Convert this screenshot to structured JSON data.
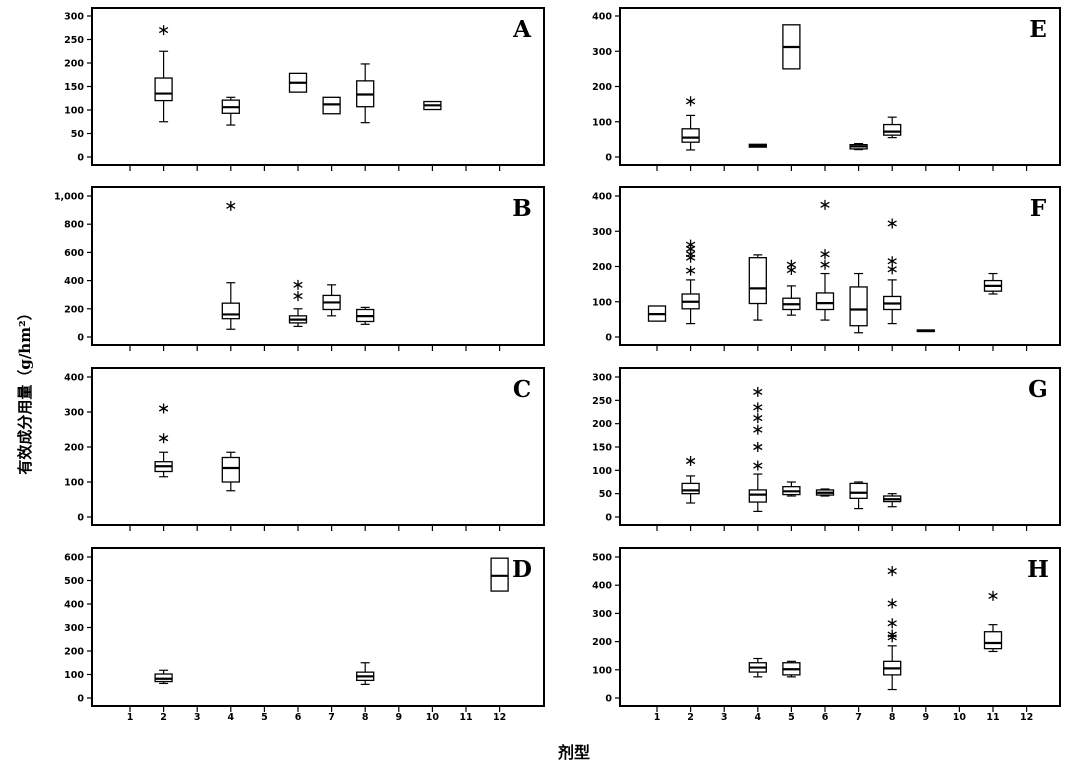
{
  "figure": {
    "ylabel": "有效成分用量（g/hm²）",
    "xlabel": "剂型",
    "x_categories": [
      "1",
      "2",
      "3",
      "4",
      "5",
      "6",
      "7",
      "8",
      "9",
      "10",
      "11",
      "12"
    ]
  },
  "chart_data": [
    {
      "type": "box",
      "panel": "A",
      "ylim": [
        0,
        300
      ],
      "yticks": [
        "0",
        "50",
        "100",
        "150",
        "200",
        "250",
        "300"
      ],
      "boxes": [
        {
          "x": 2,
          "whisker_low": 75,
          "q1": 120,
          "median": 135,
          "q3": 168,
          "whisker_high": 225,
          "outliers": [
            270
          ]
        },
        {
          "x": 4,
          "whisker_low": 68,
          "q1": 93,
          "median": 106,
          "q3": 121,
          "whisker_high": 127,
          "outliers": []
        },
        {
          "x": 6,
          "whisker_low": 138,
          "q1": 138,
          "median": 158,
          "q3": 178,
          "whisker_high": 178,
          "outliers": []
        },
        {
          "x": 7,
          "whisker_low": 92,
          "q1": 92,
          "median": 112,
          "q3": 127,
          "whisker_high": 127,
          "outliers": []
        },
        {
          "x": 8,
          "whisker_low": 73,
          "q1": 107,
          "median": 133,
          "q3": 162,
          "whisker_high": 198,
          "outliers": []
        },
        {
          "x": 10,
          "whisker_low": 101,
          "q1": 101,
          "median": 110,
          "q3": 118,
          "whisker_high": 118,
          "outliers": []
        }
      ]
    },
    {
      "type": "box",
      "panel": "E",
      "ylim": [
        0,
        400
      ],
      "yticks": [
        "0",
        "100",
        "200",
        "300",
        "400"
      ],
      "boxes": [
        {
          "x": 2,
          "whisker_low": 20,
          "q1": 42,
          "median": 55,
          "q3": 80,
          "whisker_high": 118,
          "outliers": [
            158
          ]
        },
        {
          "x": 4,
          "whisker_low": 28,
          "q1": 28,
          "median": 32,
          "q3": 36,
          "whisker_high": 36,
          "outliers": []
        },
        {
          "x": 5,
          "whisker_low": 250,
          "q1": 250,
          "median": 312,
          "q3": 375,
          "whisker_high": 375,
          "outliers": []
        },
        {
          "x": 7,
          "whisker_low": 21,
          "q1": 23,
          "median": 30,
          "q3": 35,
          "whisker_high": 38,
          "outliers": []
        },
        {
          "x": 8,
          "whisker_low": 55,
          "q1": 62,
          "median": 72,
          "q3": 92,
          "whisker_high": 113,
          "outliers": []
        }
      ]
    },
    {
      "type": "box",
      "panel": "B",
      "ylim": [
        0,
        1000
      ],
      "yticks": [
        "0",
        "200",
        "400",
        "600",
        "800",
        "1,000"
      ],
      "boxes": [
        {
          "x": 4,
          "whisker_low": 55,
          "q1": 130,
          "median": 160,
          "q3": 240,
          "whisker_high": 385,
          "outliers": [
            930
          ]
        },
        {
          "x": 6,
          "whisker_low": 75,
          "q1": 100,
          "median": 123,
          "q3": 150,
          "whisker_high": 200,
          "outliers": [
            290,
            370
          ]
        },
        {
          "x": 7,
          "whisker_low": 150,
          "q1": 195,
          "median": 245,
          "q3": 295,
          "whisker_high": 370,
          "outliers": []
        },
        {
          "x": 8,
          "whisker_low": 90,
          "q1": 110,
          "median": 148,
          "q3": 195,
          "whisker_high": 210,
          "outliers": []
        }
      ]
    },
    {
      "type": "box",
      "panel": "F",
      "ylim": [
        0,
        400
      ],
      "yticks": [
        "0",
        "100",
        "200",
        "300",
        "400"
      ],
      "boxes": [
        {
          "x": 1,
          "whisker_low": 45,
          "q1": 45,
          "median": 65,
          "q3": 88,
          "whisker_high": 88,
          "outliers": []
        },
        {
          "x": 2,
          "whisker_low": 38,
          "q1": 80,
          "median": 100,
          "q3": 122,
          "whisker_high": 162,
          "outliers": [
            188,
            225,
            235,
            250,
            262
          ]
        },
        {
          "x": 4,
          "whisker_low": 48,
          "q1": 95,
          "median": 138,
          "q3": 225,
          "whisker_high": 233,
          "outliers": []
        },
        {
          "x": 5,
          "whisker_low": 62,
          "q1": 78,
          "median": 93,
          "q3": 110,
          "whisker_high": 145,
          "outliers": [
            190,
            205
          ]
        },
        {
          "x": 6,
          "whisker_low": 48,
          "q1": 78,
          "median": 96,
          "q3": 125,
          "whisker_high": 180,
          "outliers": [
            205,
            235,
            375
          ]
        },
        {
          "x": 7,
          "whisker_low": 12,
          "q1": 32,
          "median": 78,
          "q3": 142,
          "whisker_high": 180,
          "outliers": []
        },
        {
          "x": 8,
          "whisker_low": 38,
          "q1": 78,
          "median": 95,
          "q3": 115,
          "whisker_high": 162,
          "outliers": [
            192,
            215,
            322
          ]
        },
        {
          "x": 9,
          "whisker_low": 17,
          "q1": 17,
          "median": 17,
          "q3": 20,
          "whisker_high": 20,
          "outliers": []
        },
        {
          "x": 11,
          "whisker_low": 122,
          "q1": 130,
          "median": 145,
          "q3": 160,
          "whisker_high": 180,
          "outliers": []
        }
      ]
    },
    {
      "type": "box",
      "panel": "C",
      "ylim": [
        0,
        400
      ],
      "yticks": [
        "0",
        "100",
        "200",
        "300",
        "400"
      ],
      "boxes": [
        {
          "x": 2,
          "whisker_low": 115,
          "q1": 130,
          "median": 145,
          "q3": 158,
          "whisker_high": 185,
          "outliers": [
            225,
            310
          ]
        },
        {
          "x": 4,
          "whisker_low": 75,
          "q1": 100,
          "median": 140,
          "q3": 170,
          "whisker_high": 185,
          "outliers": []
        }
      ]
    },
    {
      "type": "box",
      "panel": "G",
      "ylim": [
        0,
        300
      ],
      "yticks": [
        "0",
        "50",
        "100",
        "150",
        "200",
        "250",
        "300"
      ],
      "boxes": [
        {
          "x": 2,
          "whisker_low": 30,
          "q1": 50,
          "median": 57,
          "q3": 72,
          "whisker_high": 88,
          "outliers": [
            120
          ]
        },
        {
          "x": 4,
          "whisker_low": 12,
          "q1": 32,
          "median": 48,
          "q3": 58,
          "whisker_high": 92,
          "outliers": [
            110,
            150,
            187,
            212,
            235,
            268
          ]
        },
        {
          "x": 5,
          "whisker_low": 45,
          "q1": 48,
          "median": 55,
          "q3": 65,
          "whisker_high": 75,
          "outliers": []
        },
        {
          "x": 6,
          "whisker_low": 45,
          "q1": 47,
          "median": 52,
          "q3": 58,
          "whisker_high": 60,
          "outliers": []
        },
        {
          "x": 7,
          "whisker_low": 18,
          "q1": 40,
          "median": 52,
          "q3": 72,
          "whisker_high": 75,
          "outliers": []
        },
        {
          "x": 8,
          "whisker_low": 22,
          "q1": 33,
          "median": 38,
          "q3": 45,
          "whisker_high": 50,
          "outliers": []
        }
      ]
    },
    {
      "type": "box",
      "panel": "D",
      "ylim": [
        0,
        600
      ],
      "yticks": [
        "0",
        "100",
        "200",
        "300",
        "400",
        "500",
        "600"
      ],
      "boxes": [
        {
          "x": 2,
          "whisker_low": 62,
          "q1": 70,
          "median": 82,
          "q3": 102,
          "whisker_high": 118,
          "outliers": []
        },
        {
          "x": 8,
          "whisker_low": 58,
          "q1": 75,
          "median": 92,
          "q3": 110,
          "whisker_high": 150,
          "outliers": []
        },
        {
          "x": 12,
          "whisker_low": 455,
          "q1": 455,
          "median": 520,
          "q3": 595,
          "whisker_high": 595,
          "outliers": []
        }
      ]
    },
    {
      "type": "box",
      "panel": "H",
      "ylim": [
        0,
        500
      ],
      "yticks": [
        "0",
        "100",
        "200",
        "300",
        "400",
        "500"
      ],
      "boxes": [
        {
          "x": 4,
          "whisker_low": 75,
          "q1": 92,
          "median": 108,
          "q3": 125,
          "whisker_high": 140,
          "outliers": []
        },
        {
          "x": 5,
          "whisker_low": 75,
          "q1": 82,
          "median": 102,
          "q3": 125,
          "whisker_high": 130,
          "outliers": []
        },
        {
          "x": 8,
          "whisker_low": 30,
          "q1": 82,
          "median": 105,
          "q3": 130,
          "whisker_high": 185,
          "outliers": [
            215,
            225,
            265,
            335,
            450
          ]
        },
        {
          "x": 11,
          "whisker_low": 165,
          "q1": 175,
          "median": 195,
          "q3": 235,
          "whisker_high": 260,
          "outliers": [
            362
          ]
        }
      ]
    }
  ]
}
